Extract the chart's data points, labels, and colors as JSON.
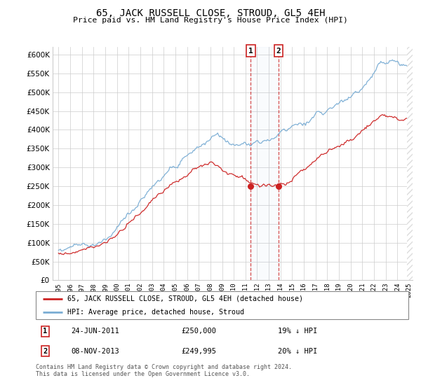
{
  "title": "65, JACK RUSSELL CLOSE, STROUD, GL5 4EH",
  "subtitle": "Price paid vs. HM Land Registry's House Price Index (HPI)",
  "ylim": [
    0,
    620000
  ],
  "yticks": [
    0,
    50000,
    100000,
    150000,
    200000,
    250000,
    300000,
    350000,
    400000,
    450000,
    500000,
    550000,
    600000
  ],
  "hpi_color": "#7aadd4",
  "price_color": "#cc2222",
  "t1_year": 2011.458,
  "t2_year": 2013.833,
  "t1_price": 250000,
  "t2_price": 249995,
  "t1_date": "24-JUN-2011",
  "t2_date": "08-NOV-2013",
  "t1_note": "19% ↓ HPI",
  "t2_note": "20% ↓ HPI",
  "legend_line1": "65, JACK RUSSELL CLOSE, STROUD, GL5 4EH (detached house)",
  "legend_line2": "HPI: Average price, detached house, Stroud",
  "footer": "Contains HM Land Registry data © Crown copyright and database right 2024.\nThis data is licensed under the Open Government Licence v3.0.",
  "background_color": "#ffffff",
  "grid_color": "#cccccc",
  "hatch_color": "#dddddd"
}
